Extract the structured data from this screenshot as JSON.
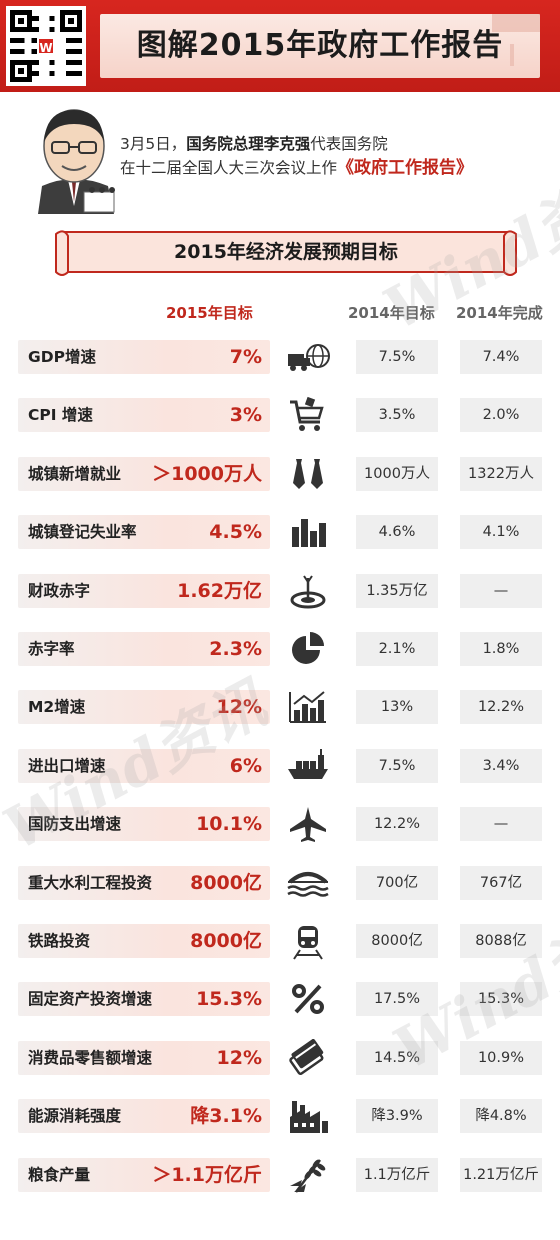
{
  "header": {
    "title": "图解2015年政府工作报告",
    "qr_logo": "W"
  },
  "intro": {
    "line1_prefix": "3月5日，",
    "line1_bold": "国务院总理李克强",
    "line1_suffix": "代表国务院",
    "line2_prefix": "在十二届全国人大三次会议上作",
    "line2_highlight": "《政府工作报告》"
  },
  "banner": {
    "title": "2015年经济发展预期目标"
  },
  "columns": {
    "target_2015": "2015年目标",
    "target_2014": "2014年目标",
    "done_2014": "2014年完成"
  },
  "rows": [
    {
      "label": "GDP增速",
      "target": "7%",
      "target_2014": "7.5%",
      "done_2014": "7.4%",
      "icon": "truck-globe-icon"
    },
    {
      "label": "CPI 增速",
      "target": "3%",
      "target_2014": "3.5%",
      "done_2014": "2.0%",
      "icon": "shopping-cart-icon"
    },
    {
      "label": "城镇新增就业",
      "target": "＞1000万人",
      "target_2014": "1000万人",
      "done_2014": "1322万人",
      "icon": "ties-icon"
    },
    {
      "label": "城镇登记失业率",
      "target": "4.5%",
      "target_2014": "4.6%",
      "done_2014": "4.1%",
      "icon": "bar-chart-icon"
    },
    {
      "label": "财政赤字",
      "target": "1.62万亿",
      "target_2014": "1.35万亿",
      "done_2014": "—",
      "icon": "target-icon"
    },
    {
      "label": "赤字率",
      "target": "2.3%",
      "target_2014": "2.1%",
      "done_2014": "1.8%",
      "icon": "pie-chart-icon"
    },
    {
      "label": "M2增速",
      "target": "12%",
      "target_2014": "13%",
      "done_2014": "12.2%",
      "icon": "growth-chart-icon"
    },
    {
      "label": "进出口增速",
      "target": "6%",
      "target_2014": "7.5%",
      "done_2014": "3.4%",
      "icon": "cargo-ship-icon"
    },
    {
      "label": "国防支出增速",
      "target": "10.1%",
      "target_2014": "12.2%",
      "done_2014": "—",
      "icon": "fighter-jet-icon"
    },
    {
      "label": "重大水利工程投资",
      "target": "8000亿",
      "target_2014": "700亿",
      "done_2014": "767亿",
      "icon": "bridge-water-icon"
    },
    {
      "label": "铁路投资",
      "target": "8000亿",
      "target_2014": "8000亿",
      "done_2014": "8088亿",
      "icon": "train-icon"
    },
    {
      "label": "固定资产投资增速",
      "target": "15.3%",
      "target_2014": "17.5%",
      "done_2014": "15.3%",
      "icon": "percent-icon"
    },
    {
      "label": "消费品零售额增速",
      "target": "12%",
      "target_2014": "14.5%",
      "done_2014": "10.9%",
      "icon": "cards-icon"
    },
    {
      "label": "能源消耗强度",
      "target": "降3.1%",
      "target_2014": "降3.9%",
      "done_2014": "降4.8%",
      "icon": "factory-icon"
    },
    {
      "label": "粮食产量",
      "target": "＞1.1万亿斤",
      "target_2014": "1.1万亿斤",
      "done_2014": "1.21万亿斤",
      "icon": "wheat-icon"
    }
  ],
  "colors": {
    "header_red": "#d7261f",
    "accent_red": "#c0281d",
    "pill_pink": "#fae4de",
    "box_gray": "#efefef"
  }
}
